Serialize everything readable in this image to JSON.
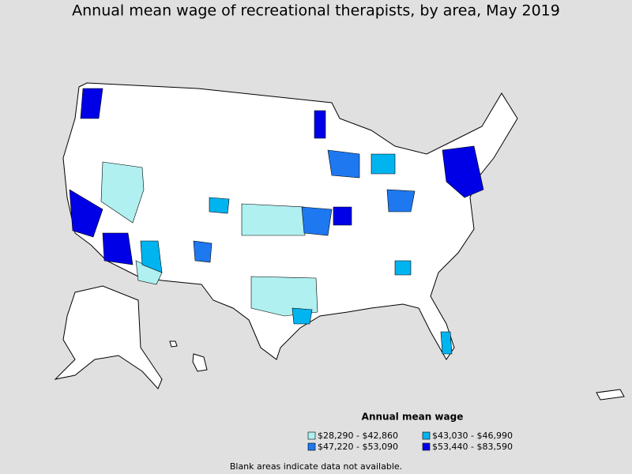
{
  "title": "Annual mean wage of recreational therapists, by area, May 2019",
  "legend": {
    "title": "Annual mean wage",
    "items": [
      {
        "label": "$28,290 - $42,860",
        "color": "#b0f0f0"
      },
      {
        "label": "$43,030 - $46,990",
        "color": "#00b4f0"
      },
      {
        "label": "$47,220 - $53,090",
        "color": "#1e78f0"
      },
      {
        "label": "$53,440 - $83,590",
        "color": "#0000e6"
      }
    ]
  },
  "note": "Blank areas indicate data not available."
}
